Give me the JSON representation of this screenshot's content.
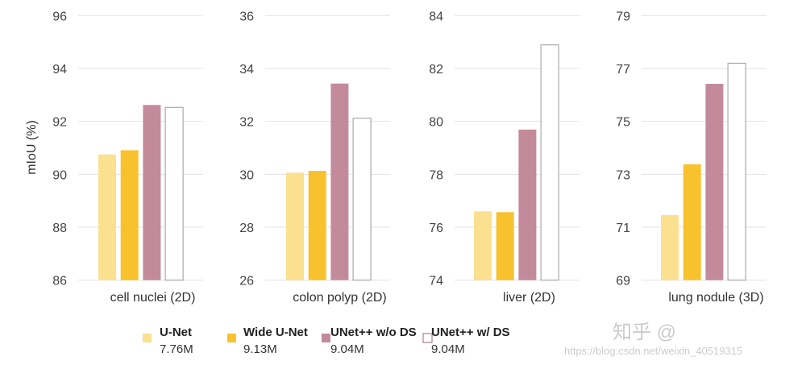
{
  "chart_data": [
    {
      "type": "bar",
      "categories": [
        "cell nuclei (2D)"
      ],
      "xlabel": "cell nuclei (2D)",
      "ylabel": "mIoU (%)",
      "ylim": [
        86,
        96
      ],
      "yticks": [
        86,
        88,
        90,
        92,
        94,
        96
      ],
      "grid": true,
      "series": [
        {
          "name": "U-Net",
          "values": [
            90.75
          ]
        },
        {
          "name": "Wide U-Net",
          "values": [
            90.91
          ]
        },
        {
          "name": "UNet++ w/o DS",
          "values": [
            92.62
          ]
        },
        {
          "name": "UNet++ w/ DS",
          "values": [
            92.53
          ]
        }
      ]
    },
    {
      "type": "bar",
      "categories": [
        "colon polyp (2D)"
      ],
      "xlabel": "colon polyp (2D)",
      "ylim": [
        26,
        36
      ],
      "yticks": [
        26,
        28,
        30,
        32,
        34,
        36
      ],
      "grid": true,
      "series": [
        {
          "name": "U-Net",
          "values": [
            30.06
          ]
        },
        {
          "name": "Wide U-Net",
          "values": [
            30.13
          ]
        },
        {
          "name": "UNet++ w/o DS",
          "values": [
            33.43
          ]
        },
        {
          "name": "UNet++ w/ DS",
          "values": [
            32.12
          ]
        }
      ]
    },
    {
      "type": "bar",
      "categories": [
        "liver (2D)"
      ],
      "xlabel": "liver (2D)",
      "ylim": [
        74,
        84
      ],
      "yticks": [
        74,
        76,
        78,
        80,
        82,
        84
      ],
      "grid": true,
      "series": [
        {
          "name": "U-Net",
          "values": [
            76.6
          ]
        },
        {
          "name": "Wide U-Net",
          "values": [
            76.57
          ]
        },
        {
          "name": "UNet++ w/o DS",
          "values": [
            79.69
          ]
        },
        {
          "name": "UNet++ w/ DS",
          "values": [
            82.89
          ]
        }
      ]
    },
    {
      "type": "bar",
      "categories": [
        "lung nodule (3D)"
      ],
      "xlabel": "lung nodule (3D)",
      "ylim": [
        69,
        79
      ],
      "yticks": [
        69,
        71,
        73,
        75,
        77,
        79
      ],
      "grid": true,
      "series": [
        {
          "name": "U-Net",
          "values": [
            71.46
          ]
        },
        {
          "name": "Wide U-Net",
          "values": [
            73.38
          ]
        },
        {
          "name": "UNet++ w/o DS",
          "values": [
            76.42
          ]
        },
        {
          "name": "UNet++ w/ DS",
          "values": [
            77.2
          ]
        }
      ]
    }
  ],
  "legend": {
    "placement": "bottom",
    "items": [
      {
        "name": "U-Net",
        "size": "7.76M",
        "color": "#fbe08f",
        "outline": false
      },
      {
        "name": "Wide U-Net",
        "size": "9.13M",
        "color": "#f8c22e",
        "outline": false
      },
      {
        "name": "UNet++ w/o DS",
        "size": "9.04M",
        "color": "#c38a9c",
        "outline": false
      },
      {
        "name": "UNet++ w/ DS",
        "size": "9.04M",
        "color": "#ffffff",
        "outline": true
      }
    ]
  },
  "watermark": {
    "main": "知乎 @",
    "url": "https://blog.csdn.net/weixin_40519315"
  }
}
